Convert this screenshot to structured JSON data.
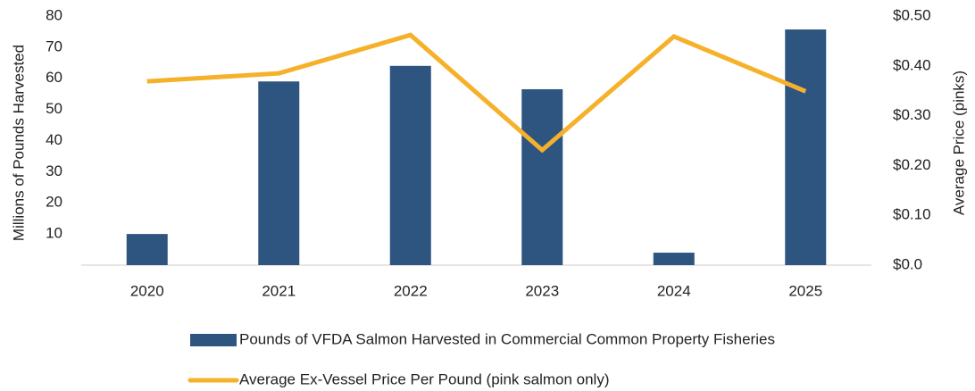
{
  "chart_data": {
    "type": "bar_line",
    "categories": [
      "2020",
      "2021",
      "2022",
      "2023",
      "2024",
      "2025"
    ],
    "y_label": "Millions of Pounds Harvested",
    "y2_label": "Average Price (pinks)",
    "ylim": [
      0,
      80
    ],
    "yticks": [
      10,
      20,
      30,
      40,
      50,
      60,
      70,
      80
    ],
    "y2lim": [
      0,
      0.5
    ],
    "y2ticks": [
      {
        "value": 0,
        "label": "$0.0"
      },
      {
        "value": 0.1,
        "label": "$0.10"
      },
      {
        "value": 0.2,
        "label": "$0.20"
      },
      {
        "value": 0.3,
        "label": "$0.30"
      },
      {
        "value": 0.4,
        "label": "$0.40"
      },
      {
        "value": 0.5,
        "label": "$0.50"
      }
    ],
    "grid": false,
    "series": [
      {
        "name": "Pounds of VFDA Salmon Harvested in Commercial Common Property Fisheries",
        "type": "bar",
        "color": "#2e5580",
        "values": [
          10,
          59,
          64,
          56.5,
          4,
          75.7
        ]
      },
      {
        "name": "Average Ex-Vessel Price Per Pound (pink salmon only)",
        "type": "line",
        "axis": "y2",
        "color": "#f6b12b",
        "values": [
          0.369,
          0.385,
          0.462,
          0.231,
          0.459,
          0.349
        ]
      }
    ]
  }
}
